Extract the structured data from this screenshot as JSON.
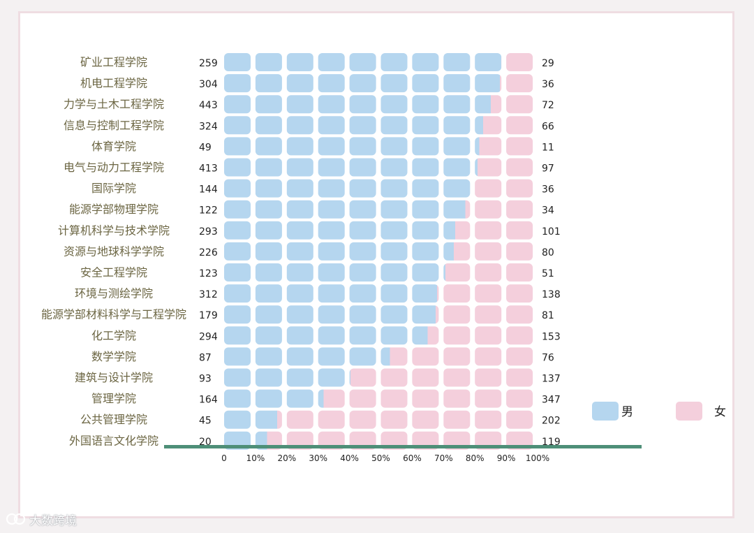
{
  "chart_data": {
    "type": "bar",
    "stacked": "percent",
    "categories": [
      "矿业工程学院",
      "机电工程学院",
      "力学与土木工程学院",
      "信息与控制工程学院",
      "体育学院",
      "电气与动力工程学院",
      "国际学院",
      "能源学部物理学院",
      "计算机科学与技术学院",
      "资源与地球科学学院",
      "安全工程学院",
      "环境与测绘学院",
      "能源学部材料科学与工程学院",
      "化工学院",
      "数学学院",
      "建筑与设计学院",
      "管理学院",
      "公共管理学院",
      "外国语言文化学院"
    ],
    "series": [
      {
        "name": "男",
        "color": "#b5d6ef",
        "values": [
          259,
          304,
          443,
          324,
          49,
          413,
          144,
          122,
          293,
          226,
          123,
          312,
          179,
          294,
          87,
          93,
          164,
          45,
          20
        ]
      },
      {
        "name": "女",
        "color": "#f4cfdc",
        "values": [
          29,
          36,
          72,
          66,
          11,
          97,
          36,
          34,
          101,
          80,
          51,
          138,
          81,
          153,
          76,
          137,
          347,
          202,
          119
        ]
      }
    ],
    "x_ticks": [
      "0",
      "10%",
      "20%",
      "30%",
      "40%",
      "50%",
      "60%",
      "70%",
      "80%",
      "90%",
      "100%"
    ],
    "xlim": [
      0,
      100
    ],
    "grid": false,
    "legend_position": "right",
    "baseline_color": "#4e8f78"
  },
  "watermark": {
    "text": "大数跨境"
  }
}
